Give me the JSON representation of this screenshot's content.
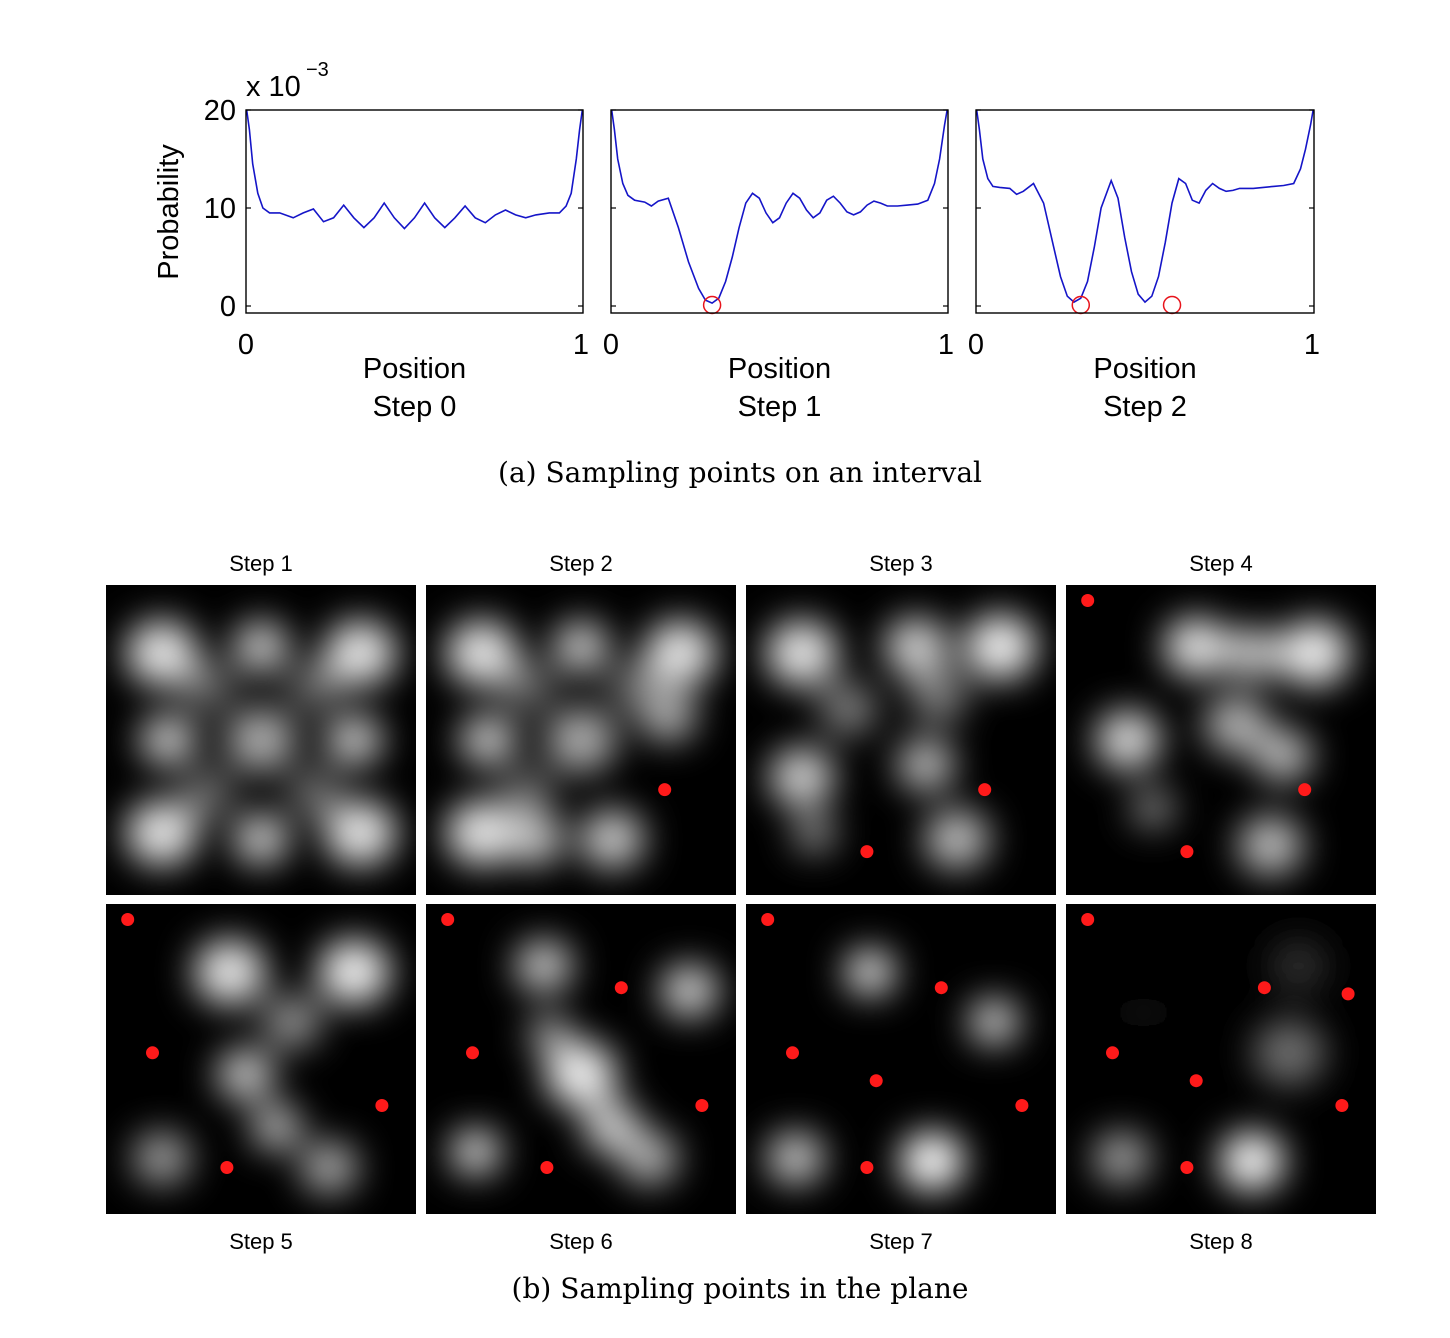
{
  "figure": {
    "caption_a": "(a) Sampling points on an interval",
    "caption_b": "(b) Sampling points in the plane"
  },
  "chart_data": [
    {
      "type": "line",
      "exponent_label": "x 10",
      "exponent_power": "−3",
      "ylabel": "Probability",
      "xlabel": "Position",
      "subtitle": "Step 0",
      "xlim": [
        0,
        1
      ],
      "ylim": [
        0,
        20
      ],
      "xticks": [
        "0",
        "1"
      ],
      "yticks": [
        "0",
        "10",
        "20"
      ],
      "series": [
        {
          "x": [
            0,
            0.01,
            0.02,
            0.035,
            0.05,
            0.07,
            0.1,
            0.14,
            0.17,
            0.2,
            0.23,
            0.26,
            0.29,
            0.32,
            0.35,
            0.38,
            0.41,
            0.44,
            0.47,
            0.5,
            0.53,
            0.56,
            0.59,
            0.62,
            0.65,
            0.68,
            0.71,
            0.74,
            0.77,
            0.8,
            0.83,
            0.86,
            0.9,
            0.93,
            0.95,
            0.965,
            0.98,
            0.99,
            1.0
          ],
          "y": [
            20.5,
            18,
            14.5,
            11.5,
            10,
            9.5,
            9.5,
            9.0,
            9.5,
            9.9,
            8.6,
            9.0,
            10.3,
            9.0,
            8.0,
            9.0,
            10.5,
            9.0,
            7.9,
            9.0,
            10.5,
            9.0,
            8.0,
            9.0,
            10.2,
            9.0,
            8.5,
            9.3,
            9.8,
            9.3,
            9.0,
            9.3,
            9.5,
            9.5,
            10.2,
            11.5,
            15.0,
            18.0,
            20.5
          ]
        }
      ],
      "markers_x": []
    },
    {
      "type": "line",
      "xlabel": "Position",
      "subtitle": "Step 1",
      "xlim": [
        0,
        1
      ],
      "ylim": [
        0,
        20
      ],
      "xticks": [
        "0",
        "1"
      ],
      "yticks": [],
      "series": [
        {
          "x": [
            0,
            0.01,
            0.02,
            0.035,
            0.05,
            0.07,
            0.1,
            0.12,
            0.14,
            0.17,
            0.2,
            0.23,
            0.26,
            0.28,
            0.3,
            0.32,
            0.34,
            0.36,
            0.38,
            0.4,
            0.42,
            0.44,
            0.46,
            0.48,
            0.5,
            0.52,
            0.54,
            0.56,
            0.58,
            0.6,
            0.62,
            0.64,
            0.66,
            0.68,
            0.7,
            0.72,
            0.74,
            0.76,
            0.78,
            0.8,
            0.82,
            0.85,
            0.88,
            0.91,
            0.94,
            0.96,
            0.975,
            0.99,
            1.0
          ],
          "y": [
            20.5,
            18,
            15,
            12.5,
            11.3,
            10.8,
            10.6,
            10.2,
            10.7,
            11.0,
            8.0,
            4.5,
            1.8,
            0.6,
            0.3,
            0.8,
            2.5,
            5.0,
            8.0,
            10.5,
            11.5,
            11.0,
            9.5,
            8.5,
            9.0,
            10.5,
            11.5,
            11.0,
            9.8,
            9.0,
            9.5,
            10.8,
            11.2,
            10.5,
            9.6,
            9.3,
            9.6,
            10.3,
            10.7,
            10.5,
            10.2,
            10.2,
            10.3,
            10.4,
            10.8,
            12.5,
            15.0,
            18.5,
            20.5
          ]
        }
      ],
      "markers_x": [
        0.3
      ]
    },
    {
      "type": "line",
      "xlabel": "Position",
      "subtitle": "Step 2",
      "xlim": [
        0,
        1
      ],
      "ylim": [
        0,
        20
      ],
      "xticks": [
        "0",
        "1"
      ],
      "yticks": [],
      "series": [
        {
          "x": [
            0,
            0.01,
            0.02,
            0.035,
            0.05,
            0.07,
            0.1,
            0.12,
            0.14,
            0.17,
            0.2,
            0.23,
            0.25,
            0.27,
            0.29,
            0.31,
            0.33,
            0.35,
            0.37,
            0.4,
            0.42,
            0.44,
            0.46,
            0.48,
            0.5,
            0.52,
            0.54,
            0.56,
            0.58,
            0.6,
            0.62,
            0.64,
            0.66,
            0.68,
            0.7,
            0.72,
            0.74,
            0.76,
            0.78,
            0.8,
            0.82,
            0.85,
            0.88,
            0.91,
            0.94,
            0.96,
            0.975,
            0.99,
            1.0
          ],
          "y": [
            20.5,
            18,
            15,
            13.0,
            12.2,
            12.1,
            12.0,
            11.4,
            11.7,
            12.5,
            10.5,
            6.0,
            3.0,
            1.0,
            0.4,
            0.8,
            2.5,
            6.0,
            10.0,
            12.8,
            11.0,
            7.0,
            3.5,
            1.2,
            0.4,
            1.0,
            3.0,
            6.5,
            10.5,
            13.0,
            12.5,
            10.8,
            10.5,
            11.8,
            12.5,
            12.0,
            11.7,
            11.8,
            12.0,
            12.0,
            12.0,
            12.1,
            12.2,
            12.3,
            12.5,
            14.0,
            16.0,
            18.5,
            20.5
          ]
        }
      ],
      "markers_x": [
        0.31,
        0.58
      ]
    }
  ],
  "heatmaps": [
    {
      "label": "Step 1",
      "points": []
    },
    {
      "label": "Step 2",
      "points": [
        [
          0.77,
          0.66
        ]
      ]
    },
    {
      "label": "Step 3",
      "points": [
        [
          0.77,
          0.66
        ],
        [
          0.39,
          0.86
        ]
      ]
    },
    {
      "label": "Step 4",
      "points": [
        [
          0.77,
          0.66
        ],
        [
          0.39,
          0.86
        ],
        [
          0.07,
          0.05
        ]
      ]
    },
    {
      "label": "Step 5",
      "points": [
        [
          0.07,
          0.05
        ],
        [
          0.15,
          0.48
        ],
        [
          0.89,
          0.65
        ],
        [
          0.39,
          0.85
        ]
      ]
    },
    {
      "label": "Step 6",
      "points": [
        [
          0.07,
          0.05
        ],
        [
          0.15,
          0.48
        ],
        [
          0.89,
          0.65
        ],
        [
          0.39,
          0.85
        ],
        [
          0.63,
          0.27
        ]
      ]
    },
    {
      "label": "Step 7",
      "points": [
        [
          0.07,
          0.05
        ],
        [
          0.15,
          0.48
        ],
        [
          0.89,
          0.65
        ],
        [
          0.39,
          0.85
        ],
        [
          0.63,
          0.27
        ],
        [
          0.42,
          0.57
        ]
      ]
    },
    {
      "label": "Step 8",
      "points": [
        [
          0.07,
          0.05
        ],
        [
          0.15,
          0.48
        ],
        [
          0.89,
          0.65
        ],
        [
          0.39,
          0.85
        ],
        [
          0.42,
          0.57
        ],
        [
          0.64,
          0.27
        ],
        [
          0.91,
          0.29
        ]
      ]
    }
  ],
  "colors": {
    "line": "#1515c8",
    "marker": "#e8141c",
    "point": "#ff1a1a"
  }
}
